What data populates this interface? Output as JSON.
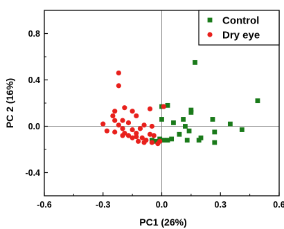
{
  "chart_data": {
    "type": "scatter",
    "xlabel": "PC1 (26%)",
    "ylabel": "PC 2 (16%)",
    "xlim": [
      -0.6,
      0.6
    ],
    "ylim": [
      -0.6,
      1.0
    ],
    "xticks": [
      -0.6,
      -0.3,
      0.0,
      0.3,
      0.6
    ],
    "yticks": [
      -0.4,
      0.0,
      0.4,
      0.8
    ],
    "xtick_labels": [
      "-0.6",
      "-0.3",
      "0.0",
      "0.3",
      "0.6"
    ],
    "ytick_labels": [
      "-0.4",
      "0.0",
      "0.4",
      "0.8"
    ],
    "zero_lines": true,
    "legend_position": "top-right",
    "series": [
      {
        "name": "Control",
        "marker": "square",
        "color": "#1a7a1a",
        "points": [
          [
            0.17,
            0.55
          ],
          [
            0.49,
            0.22
          ],
          [
            0.03,
            0.18
          ],
          [
            0.0,
            0.17
          ],
          [
            0.15,
            0.14
          ],
          [
            0.15,
            0.12
          ],
          [
            0.26,
            0.06
          ],
          [
            0.11,
            0.06
          ],
          [
            0.0,
            0.06
          ],
          [
            0.35,
            0.02
          ],
          [
            0.06,
            0.03
          ],
          [
            0.12,
            0.0
          ],
          [
            0.41,
            -0.03
          ],
          [
            0.14,
            -0.04
          ],
          [
            0.27,
            -0.05
          ],
          [
            0.09,
            -0.07
          ],
          [
            0.2,
            -0.1
          ],
          [
            0.05,
            -0.11
          ],
          [
            0.03,
            -0.12
          ],
          [
            0.13,
            -0.12
          ],
          [
            0.19,
            -0.12
          ],
          [
            -0.01,
            -0.11
          ],
          [
            -0.03,
            -0.13
          ],
          [
            0.01,
            -0.12
          ],
          [
            0.27,
            -0.14
          ],
          [
            -0.05,
            -0.12
          ]
        ]
      },
      {
        "name": "Dry eye",
        "marker": "circle",
        "color": "#e8201c",
        "points": [
          [
            -0.22,
            0.46
          ],
          [
            -0.22,
            0.35
          ],
          [
            -0.19,
            0.16
          ],
          [
            -0.24,
            0.13
          ],
          [
            -0.15,
            0.13
          ],
          [
            -0.25,
            0.09
          ],
          [
            -0.13,
            0.09
          ],
          [
            -0.06,
            0.15
          ],
          [
            0.01,
            0.17
          ],
          [
            -0.3,
            0.02
          ],
          [
            -0.24,
            0.05
          ],
          [
            -0.2,
            0.05
          ],
          [
            -0.17,
            0.03
          ],
          [
            -0.22,
            0.01
          ],
          [
            -0.09,
            0.01
          ],
          [
            -0.05,
            0.0
          ],
          [
            -0.11,
            -0.02
          ],
          [
            -0.28,
            -0.04
          ],
          [
            -0.2,
            -0.02
          ],
          [
            -0.15,
            -0.03
          ],
          [
            -0.19,
            -0.06
          ],
          [
            -0.24,
            -0.05
          ],
          [
            -0.13,
            -0.06
          ],
          [
            -0.06,
            -0.07
          ],
          [
            -0.04,
            -0.08
          ],
          [
            -0.17,
            -0.08
          ],
          [
            -0.1,
            -0.1
          ],
          [
            -0.15,
            -0.1
          ],
          [
            -0.08,
            -0.12
          ],
          [
            -0.12,
            -0.13
          ],
          [
            -0.09,
            -0.14
          ],
          [
            -0.05,
            -0.14
          ],
          [
            -0.01,
            -0.13
          ],
          [
            -0.02,
            -0.15
          ],
          [
            -0.13,
            -0.09
          ],
          [
            -0.2,
            -0.08
          ]
        ]
      }
    ]
  }
}
